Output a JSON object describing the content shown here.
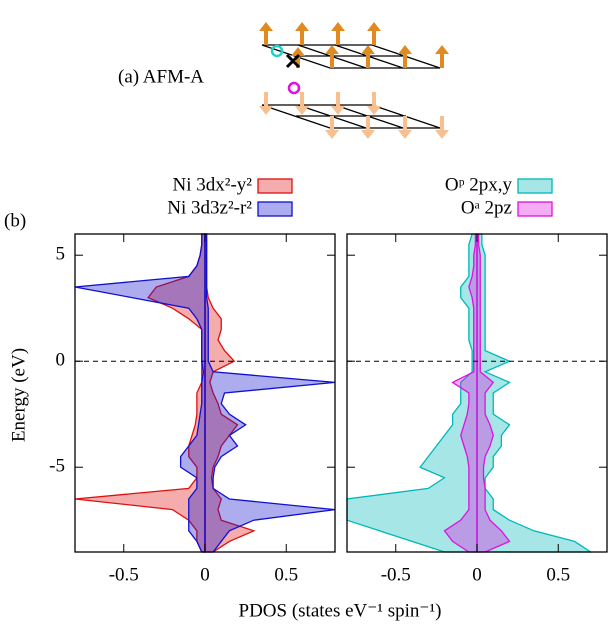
{
  "diagram": {
    "label": "(a) AFM-A"
  },
  "panel_label": "(b)",
  "chart_data": [
    {
      "type": "area",
      "ylabel": "Energy (eV)",
      "xlabel": "PDOS (states eV⁻¹ spin⁻¹)",
      "energy": [
        -9,
        -8.5,
        -8,
        -7.5,
        -7,
        -6.5,
        -6,
        -5.5,
        -5,
        -4.5,
        -4,
        -3.5,
        -3,
        -2.5,
        -2,
        -1.5,
        -1,
        -0.5,
        0,
        0.5,
        1,
        1.5,
        2,
        2.5,
        3,
        3.5,
        4,
        4.5,
        5,
        5.5,
        6
      ],
      "xlim": [
        -0.8,
        0.8
      ],
      "xticks": [
        -0.5,
        0,
        0.5
      ],
      "ylim": [
        -9,
        6
      ],
      "yticks": [
        -5,
        0,
        5
      ],
      "series": [
        {
          "name": "Ni 3dx²-y²",
          "color": "#e01010",
          "values": [
            0.05,
            0.15,
            0.3,
            0.1,
            0.08,
            0.1,
            0.05,
            0.04,
            0.05,
            0.08,
            0.1,
            0.15,
            0.2,
            0.1,
            0.08,
            0.05,
            0.03,
            0.05,
            0.18,
            0.12,
            0.08,
            0.1,
            0.1,
            0.05,
            0.02,
            0.01,
            0.01,
            0.01,
            0.01,
            0.01,
            0.01
          ],
          "values_down": [
            -0.02,
            -0.05,
            -0.05,
            -0.1,
            -0.2,
            -0.8,
            -0.1,
            -0.05,
            -0.05,
            -0.1,
            -0.1,
            -0.08,
            -0.06,
            -0.05,
            -0.05,
            -0.05,
            -0.02,
            -0.02,
            -0.02,
            -0.02,
            -0.02,
            -0.02,
            -0.1,
            -0.2,
            -0.35,
            -0.3,
            -0.1,
            -0.05,
            -0.03,
            -0.02,
            -0.02
          ]
        },
        {
          "name": "Ni 3d3z²-r²",
          "color": "#1010d0",
          "values": [
            0.05,
            0.1,
            0.15,
            0.3,
            0.8,
            0.15,
            0.05,
            0.05,
            0.06,
            0.1,
            0.2,
            0.15,
            0.25,
            0.15,
            0.1,
            0.12,
            0.8,
            0.05,
            0.02,
            0.02,
            0.02,
            0.02,
            0.02,
            0.02,
            0.01,
            0.01,
            0.01,
            0.01,
            0.01,
            0.01,
            0.01
          ],
          "values_down": [
            -0.02,
            -0.05,
            -0.1,
            -0.1,
            -0.1,
            -0.1,
            -0.05,
            -0.05,
            -0.15,
            -0.15,
            -0.1,
            -0.05,
            -0.04,
            -0.03,
            -0.02,
            -0.02,
            -0.02,
            -0.01,
            -0.02,
            -0.02,
            -0.02,
            -0.02,
            -0.05,
            -0.1,
            -0.45,
            -0.8,
            -0.1,
            -0.05,
            -0.03,
            -0.02,
            -0.02
          ]
        }
      ]
    },
    {
      "type": "area",
      "energy": [
        -9,
        -8.5,
        -8,
        -7.5,
        -7,
        -6.5,
        -6,
        -5.5,
        -5,
        -4.5,
        -4,
        -3.5,
        -3,
        -2.5,
        -2,
        -1.5,
        -1,
        -0.5,
        0,
        0.5,
        1,
        1.5,
        2,
        2.5,
        3,
        3.5,
        4,
        4.5,
        5,
        5.5,
        6
      ],
      "xlim": [
        -0.8,
        0.8
      ],
      "xticks": [
        -0.5,
        0,
        0.5
      ],
      "ylim": [
        -9,
        6
      ],
      "yticks": [
        -5,
        0,
        5
      ],
      "series": [
        {
          "name": "Oᵖ 2px,y",
          "color": "#00b8b8",
          "values": [
            0.7,
            0.6,
            0.35,
            0.2,
            0.1,
            0.1,
            0.05,
            0.05,
            0.1,
            0.1,
            0.15,
            0.15,
            0.2,
            0.1,
            0.1,
            0.1,
            0.2,
            0.05,
            0.2,
            0.05,
            0.05,
            0.05,
            0.05,
            0.05,
            0.05,
            0.05,
            0.05,
            0.05,
            0.05,
            0.03,
            0.03
          ],
          "values_down": [
            -0.2,
            -0.4,
            -0.6,
            -0.8,
            -0.8,
            -0.8,
            -0.3,
            -0.2,
            -0.35,
            -0.3,
            -0.25,
            -0.2,
            -0.15,
            -0.15,
            -0.1,
            -0.1,
            -0.1,
            -0.03,
            -0.03,
            -0.03,
            -0.05,
            -0.05,
            -0.05,
            -0.05,
            -0.1,
            -0.1,
            -0.05,
            -0.05,
            -0.05,
            -0.05,
            -0.03
          ]
        },
        {
          "name": "Oᵃ 2pz",
          "color": "#e010e0",
          "values": [
            0.05,
            0.2,
            0.15,
            0.08,
            0.05,
            0.05,
            0.05,
            0.04,
            0.04,
            0.05,
            0.08,
            0.1,
            0.08,
            0.05,
            0.05,
            0.05,
            0.1,
            0.02,
            0.02,
            0.02,
            0.02,
            0.02,
            0.02,
            0.02,
            0.02,
            0.02,
            0.02,
            0.02,
            0.02,
            0.01,
            0.01
          ],
          "values_down": [
            -0.05,
            -0.15,
            -0.2,
            -0.1,
            -0.05,
            -0.05,
            -0.05,
            -0.05,
            -0.05,
            -0.06,
            -0.08,
            -0.1,
            -0.08,
            -0.06,
            -0.05,
            -0.05,
            -0.15,
            -0.02,
            -0.02,
            -0.02,
            -0.02,
            -0.02,
            -0.02,
            -0.02,
            -0.03,
            -0.05,
            -0.03,
            -0.02,
            -0.02,
            -0.01,
            -0.01
          ]
        }
      ]
    }
  ]
}
